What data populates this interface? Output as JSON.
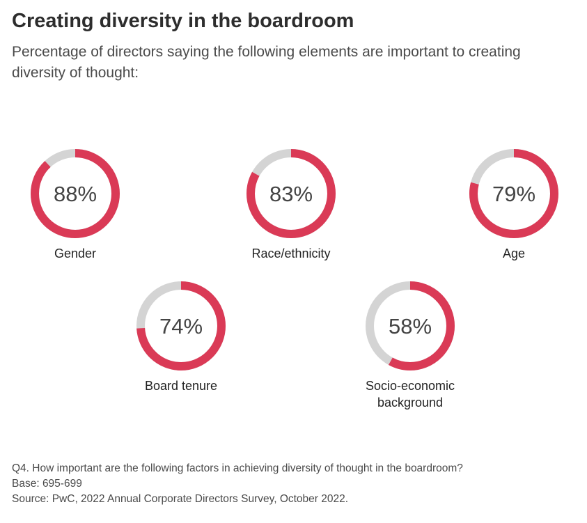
{
  "title": "Creating diversity in the boardroom",
  "subtitle": "Percentage of directors saying the following elements are important to creating diversity of thought:",
  "chart_data": {
    "type": "pie",
    "variant": "donut",
    "unit": "%",
    "colors": {
      "value": "#da3a56",
      "remainder": "#d4d4d4"
    },
    "items": [
      {
        "label": "Gender",
        "value": 88,
        "display": "88%"
      },
      {
        "label": "Race/ethnicity",
        "value": 83,
        "display": "83%"
      },
      {
        "label": "Age",
        "value": 79,
        "display": "79%"
      },
      {
        "label": "Board tenure",
        "value": 74,
        "display": "74%"
      },
      {
        "label": "Socio-economic background",
        "value": 58,
        "display": "58%"
      }
    ]
  },
  "footnotes": {
    "question": "Q4. How important are the following factors in achieving diversity of thought in the boardroom?",
    "base": "Base: 695-699",
    "source": "Source: PwC, 2022 Annual Corporate Directors Survey, October 2022."
  }
}
